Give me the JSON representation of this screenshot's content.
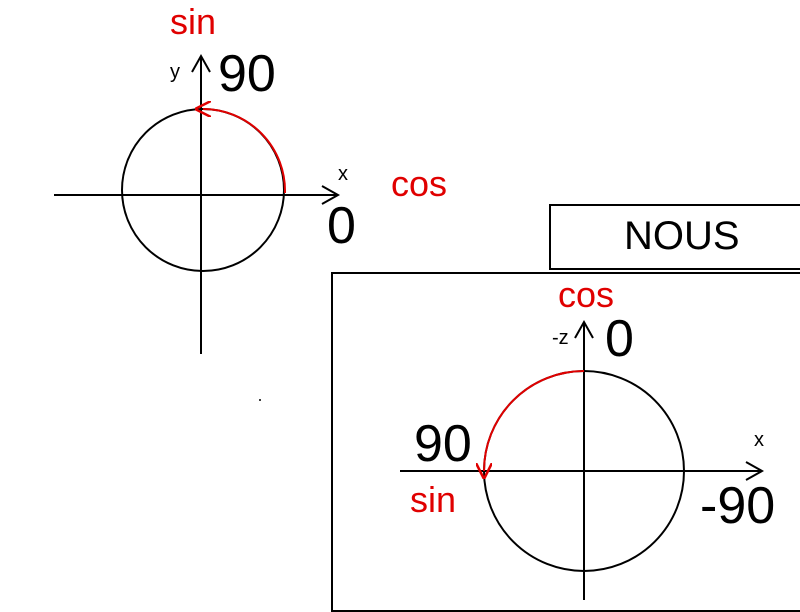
{
  "diagram_1": {
    "sin_label": "sin",
    "y_label": "y",
    "angle_top": "90",
    "x_label": "x",
    "cos_label": "cos",
    "angle_right": "0"
  },
  "diagram_2": {
    "box_label": "NOUS",
    "cos_label": "cos",
    "neg_z_label": "-z",
    "angle_top": "0",
    "angle_left": "90",
    "sin_label": "sin",
    "x_label": "x",
    "angle_right": "-90"
  },
  "colors": {
    "line": "#000000",
    "accent": "#e00000"
  }
}
